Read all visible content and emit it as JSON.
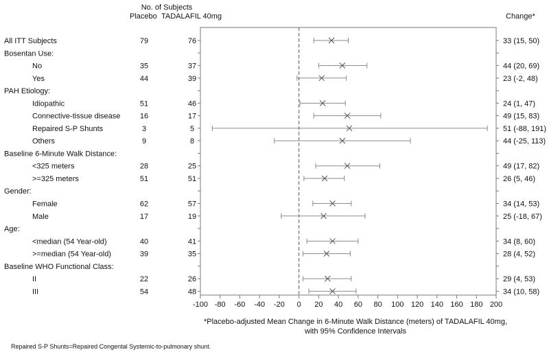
{
  "header": {
    "no_subjects": "No. of Subjects",
    "placebo": "Placebo",
    "tadalafil": "TADALAFIL 40mg",
    "change": "Change*"
  },
  "footnotes": {
    "axis_caption_line1": "*Placebo-adjusted Mean Change in 6-Minute Walk Distance (meters) of TADALAFIL 40mg,",
    "axis_caption_line2": "with 95% Confidence Intervals",
    "abbreviation": "Repaired S-P Shunts=Repaired Congental Systemic-to-pulmonary shunt."
  },
  "chart_data": {
    "type": "forest",
    "title": "",
    "xlabel": "*Placebo-adjusted Mean Change in 6-Minute Walk Distance (meters) of TADALAFIL 40mg, with 95% Confidence Intervals",
    "xlim": [
      -100,
      200
    ],
    "xticks": [
      -100,
      -80,
      -60,
      -40,
      -20,
      0,
      20,
      40,
      60,
      80,
      100,
      120,
      140,
      160,
      180,
      200
    ],
    "reference_line": 0,
    "colors": {
      "whisker": "#8a8a8a",
      "reference": "#555555",
      "frame": "#777777",
      "text": "#111111"
    },
    "rows": [
      {
        "label": "All ITT Subjects",
        "indent": false,
        "placebo": "79",
        "tadalafil": "76",
        "mean": 33,
        "lo": 15,
        "hi": 50,
        "change": "33 (15, 50)"
      },
      {
        "label": "Bosentan Use:",
        "header": true
      },
      {
        "label": "No",
        "indent": true,
        "placebo": "35",
        "tadalafil": "37",
        "mean": 44,
        "lo": 20,
        "hi": 69,
        "change": "44 (20, 69)"
      },
      {
        "label": "Yes",
        "indent": true,
        "placebo": "44",
        "tadalafil": "39",
        "mean": 23,
        "lo": -2,
        "hi": 48,
        "change": "23 (-2, 48)"
      },
      {
        "label": "PAH Etiology:",
        "header": true
      },
      {
        "label": "Idiopathic",
        "indent": true,
        "placebo": "51",
        "tadalafil": "46",
        "mean": 24,
        "lo": 1,
        "hi": 47,
        "change": "24 (1, 47)"
      },
      {
        "label": "Connective-tissue disease",
        "indent": true,
        "placebo": "16",
        "tadalafil": "17",
        "mean": 49,
        "lo": 15,
        "hi": 83,
        "change": "49 (15, 83)"
      },
      {
        "label": "Repaired S-P Shunts",
        "indent": true,
        "placebo": "3",
        "tadalafil": "5",
        "mean": 51,
        "lo": -88,
        "hi": 191,
        "change": "51 (-88, 191)"
      },
      {
        "label": "Others",
        "indent": true,
        "placebo": "9",
        "tadalafil": "8",
        "mean": 44,
        "lo": -25,
        "hi": 113,
        "change": "44 (-25, 113)"
      },
      {
        "label": "Baseline 6-Minute Walk Distance:",
        "header": true
      },
      {
        "label": "<325 meters",
        "indent": true,
        "placebo": "28",
        "tadalafil": "25",
        "mean": 49,
        "lo": 17,
        "hi": 82,
        "change": "49 (17, 82)"
      },
      {
        "label": ">=325 meters",
        "indent": true,
        "placebo": "51",
        "tadalafil": "51",
        "mean": 26,
        "lo": 5,
        "hi": 46,
        "change": "26 (5, 46)"
      },
      {
        "label": "Gender:",
        "header": true
      },
      {
        "label": "Female",
        "indent": true,
        "placebo": "62",
        "tadalafil": "57",
        "mean": 34,
        "lo": 14,
        "hi": 53,
        "change": "34 (14, 53)"
      },
      {
        "label": "Male",
        "indent": true,
        "placebo": "17",
        "tadalafil": "19",
        "mean": 25,
        "lo": -18,
        "hi": 67,
        "change": "25 (-18, 67)"
      },
      {
        "label": "Age:",
        "header": true
      },
      {
        "label": "<median (54 Year-old)",
        "indent": true,
        "placebo": "40",
        "tadalafil": "41",
        "mean": 34,
        "lo": 8,
        "hi": 60,
        "change": "34 (8, 60)"
      },
      {
        "label": ">=median (54 Year-old)",
        "indent": true,
        "placebo": "39",
        "tadalafil": "35",
        "mean": 28,
        "lo": 4,
        "hi": 52,
        "change": "28 (4, 52)"
      },
      {
        "label": "Baseline WHO Functional Class:",
        "header": true
      },
      {
        "label": "II",
        "indent": true,
        "placebo": "22",
        "tadalafil": "26",
        "mean": 29,
        "lo": 4,
        "hi": 53,
        "change": "29 (4, 53)"
      },
      {
        "label": "III",
        "indent": true,
        "placebo": "54",
        "tadalafil": "48",
        "mean": 34,
        "lo": 10,
        "hi": 58,
        "change": "34 (10, 58)"
      }
    ]
  }
}
